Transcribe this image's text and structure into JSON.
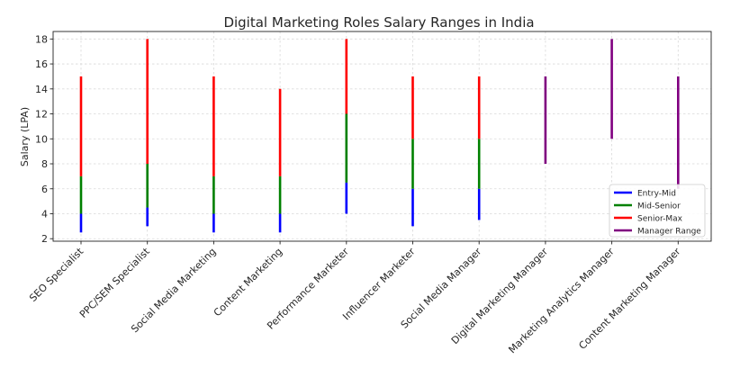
{
  "chart_data": {
    "type": "range-bar",
    "title": "Digital Marketing Roles Salary Ranges in India",
    "xlabel": "",
    "ylabel": "Salary (LPA)",
    "ylim": [
      1.8,
      18.6
    ],
    "yticks": [
      2,
      4,
      6,
      8,
      10,
      12,
      14,
      16,
      18
    ],
    "grid": true,
    "legend_position": "lower-right",
    "categories": [
      "SEO Specialist",
      "PPC/SEM Specialist",
      "Social Media Marketing",
      "Content Marketing",
      "Performance Marketer",
      "Influencer Marketer",
      "Social Media Manager",
      "Digital Marketing Manager",
      "Marketing Analytics Manager",
      "Content Marketing Manager"
    ],
    "series": [
      {
        "name": "Entry-Mid",
        "color": "#0000ff",
        "ranges": [
          [
            2.5,
            4
          ],
          [
            3,
            4.5
          ],
          [
            2.5,
            4
          ],
          [
            2.5,
            4
          ],
          [
            4,
            6.5
          ],
          [
            3,
            6
          ],
          [
            3.5,
            6
          ],
          null,
          null,
          null
        ]
      },
      {
        "name": "Mid-Senior",
        "color": "#008000",
        "ranges": [
          [
            4,
            7
          ],
          [
            4.5,
            8
          ],
          [
            4,
            7
          ],
          [
            4,
            7
          ],
          [
            6.5,
            12
          ],
          [
            6,
            10
          ],
          [
            6,
            10
          ],
          null,
          null,
          null
        ]
      },
      {
        "name": "Senior-Max",
        "color": "#ff0000",
        "ranges": [
          [
            7,
            15
          ],
          [
            8,
            18
          ],
          [
            7,
            15
          ],
          [
            7,
            14
          ],
          [
            12,
            18
          ],
          [
            10,
            15
          ],
          [
            10,
            15
          ],
          null,
          null,
          null
        ]
      },
      {
        "name": "Manager Range",
        "color": "#800080",
        "ranges": [
          null,
          null,
          null,
          null,
          null,
          null,
          null,
          [
            8,
            15
          ],
          [
            10,
            18
          ],
          [
            6,
            15
          ]
        ]
      }
    ]
  }
}
